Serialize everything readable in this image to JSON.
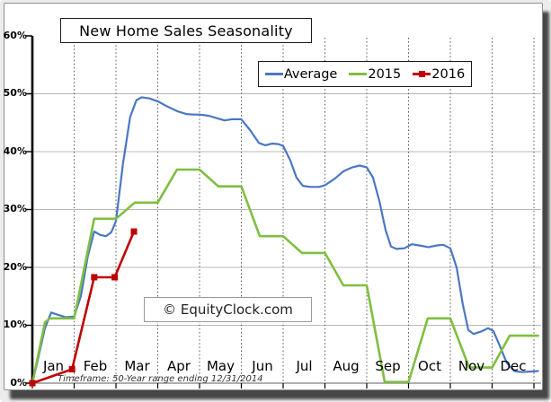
{
  "watermark": "© EquityClock.com",
  "chart_data": {
    "type": "line",
    "title": "New Home Sales Seasonality",
    "note": "Timeframe: 50-Year range ending 12/31/2014",
    "categories": [
      "Jan",
      "Feb",
      "Mar",
      "Apr",
      "May",
      "Jun",
      "Jul",
      "Aug",
      "Sep",
      "Oct",
      "Nov",
      "Dec"
    ],
    "y_ticks": [
      "0%",
      "10%",
      "20%",
      "30%",
      "40%",
      "50%",
      "60%"
    ],
    "ylabel": "",
    "xlabel": "",
    "ylim": [
      0,
      60
    ],
    "x_unit": "month position (0 = Jan 1, 12 = Dec 31), values are cumulative percent",
    "legend_position": "top-right",
    "grid": "horizontal solid, vertical dotted",
    "legend": [
      "Average",
      "2015",
      "2016"
    ],
    "series": [
      {
        "name": "Average",
        "color": "#4a77c4",
        "marker": "none",
        "points": [
          [
            0,
            0
          ],
          [
            0.13,
            4.0
          ],
          [
            0.3,
            9.5
          ],
          [
            0.45,
            12.2
          ],
          [
            0.62,
            11.8
          ],
          [
            0.8,
            11.4
          ],
          [
            1.0,
            11.5
          ],
          [
            1.16,
            15.0
          ],
          [
            1.33,
            22.0
          ],
          [
            1.48,
            26.2
          ],
          [
            1.63,
            25.6
          ],
          [
            1.76,
            25.4
          ],
          [
            1.89,
            26.1
          ],
          [
            2.0,
            28.0
          ],
          [
            2.17,
            38.0
          ],
          [
            2.34,
            46.0
          ],
          [
            2.49,
            48.9
          ],
          [
            2.62,
            49.4
          ],
          [
            2.8,
            49.2
          ],
          [
            3.0,
            48.7
          ],
          [
            3.2,
            47.9
          ],
          [
            3.46,
            47.0
          ],
          [
            3.68,
            46.5
          ],
          [
            3.85,
            46.4
          ],
          [
            4.0,
            46.4
          ],
          [
            4.22,
            46.2
          ],
          [
            4.45,
            45.7
          ],
          [
            4.6,
            45.4
          ],
          [
            4.77,
            45.6
          ],
          [
            5.0,
            45.6
          ],
          [
            5.2,
            43.8
          ],
          [
            5.42,
            41.5
          ],
          [
            5.57,
            41.1
          ],
          [
            5.74,
            41.4
          ],
          [
            5.89,
            41.3
          ],
          [
            6.0,
            41.0
          ],
          [
            6.17,
            38.5
          ],
          [
            6.32,
            35.5
          ],
          [
            6.47,
            34.1
          ],
          [
            6.65,
            33.9
          ],
          [
            6.86,
            33.9
          ],
          [
            7.0,
            34.2
          ],
          [
            7.23,
            35.3
          ],
          [
            7.44,
            36.6
          ],
          [
            7.66,
            37.3
          ],
          [
            7.83,
            37.6
          ],
          [
            8.0,
            37.3
          ],
          [
            8.15,
            35.5
          ],
          [
            8.3,
            31.5
          ],
          [
            8.45,
            26.5
          ],
          [
            8.58,
            23.6
          ],
          [
            8.71,
            23.2
          ],
          [
            8.9,
            23.3
          ],
          [
            9.08,
            24.0
          ],
          [
            9.25,
            23.8
          ],
          [
            9.48,
            23.5
          ],
          [
            9.68,
            23.8
          ],
          [
            9.83,
            23.9
          ],
          [
            10.0,
            23.3
          ],
          [
            10.15,
            20.0
          ],
          [
            10.3,
            13.5
          ],
          [
            10.43,
            9.2
          ],
          [
            10.56,
            8.5
          ],
          [
            10.73,
            8.9
          ],
          [
            10.9,
            9.5
          ],
          [
            11.03,
            9.0
          ],
          [
            11.18,
            6.5
          ],
          [
            11.35,
            3.5
          ],
          [
            11.53,
            2.1
          ],
          [
            11.7,
            1.9
          ],
          [
            11.9,
            2.0
          ],
          [
            12.1,
            2.1
          ]
        ]
      },
      {
        "name": "2015",
        "color": "#7fbf3f",
        "marker": "none",
        "points": [
          [
            0,
            0
          ],
          [
            0.3,
            10.5
          ],
          [
            0.42,
            11.2
          ],
          [
            1.0,
            11.2
          ],
          [
            1.48,
            28.4
          ],
          [
            2.0,
            28.4
          ],
          [
            2.45,
            31.2
          ],
          [
            3.0,
            31.2
          ],
          [
            3.46,
            36.9
          ],
          [
            4.0,
            36.9
          ],
          [
            4.45,
            34.0
          ],
          [
            5.0,
            34.0
          ],
          [
            5.44,
            25.4
          ],
          [
            6.0,
            25.4
          ],
          [
            6.45,
            22.5
          ],
          [
            7.0,
            22.5
          ],
          [
            7.44,
            16.9
          ],
          [
            8.0,
            16.9
          ],
          [
            8.43,
            0.2
          ],
          [
            9.0,
            0.2
          ],
          [
            9.46,
            11.2
          ],
          [
            10.0,
            11.2
          ],
          [
            10.45,
            2.7
          ],
          [
            11.0,
            2.7
          ],
          [
            11.42,
            8.2
          ],
          [
            12.1,
            8.2
          ]
        ]
      },
      {
        "name": "2016",
        "color": "#c00000",
        "marker": "square",
        "points": [
          [
            0,
            0
          ],
          [
            0.95,
            2.4
          ],
          [
            1.48,
            18.3
          ],
          [
            1.97,
            18.3
          ],
          [
            2.43,
            26.2
          ]
        ]
      }
    ]
  }
}
